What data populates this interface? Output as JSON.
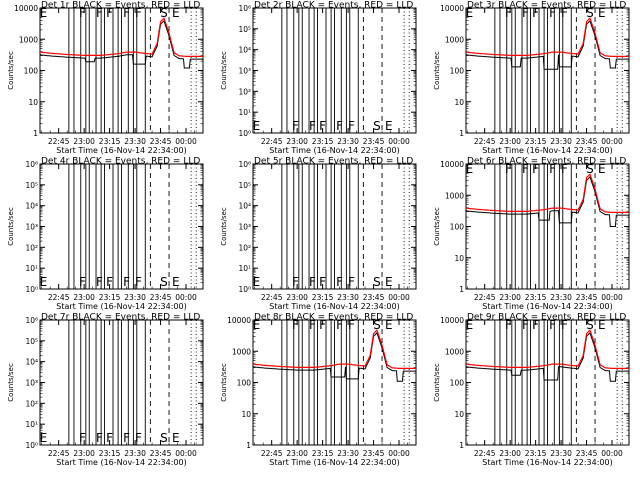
{
  "chart_data": {
    "type": "line",
    "x_ticks": [
      "22:45",
      "23:00",
      "23:15",
      "23:30",
      "23:45",
      "00:00"
    ],
    "xlabel": "Start Time (16-Nov-14 22:34:00)",
    "ylabel": "Counts/sec",
    "y_scale": "log",
    "event_letters": [
      "E",
      "F",
      "F",
      "F",
      "F",
      "F",
      "S",
      "E"
    ],
    "event_lines_solid": [
      "22:51",
      "22:54",
      "22:58",
      "23:01",
      "23:03",
      "23:07",
      "23:10",
      "23:12",
      "23:17",
      "23:20",
      "23:22",
      "23:26",
      "23:29",
      "23:31",
      "23:36"
    ],
    "event_lines_dashed": [
      "23:39",
      "23:50"
    ],
    "event_lines_dotted": [
      "00:03",
      "00:06"
    ],
    "letter_times": [
      "22:36",
      "22:59",
      "23:09",
      "23:15",
      "23:25",
      "23:32",
      "23:47",
      "23:54"
    ],
    "series": [
      {
        "name": "BLACK = Events",
        "color": "#000000"
      },
      {
        "name": "RED = LLD",
        "color": "#ff0000"
      }
    ],
    "curve_times": [
      "22:34",
      "22:40",
      "22:50",
      "23:00",
      "23:10",
      "23:20",
      "23:25",
      "23:30",
      "23:35",
      "23:40",
      "23:43",
      "23:45",
      "23:47",
      "23:50",
      "23:53",
      "23:56",
      "24:00",
      "24:05",
      "24:10"
    ],
    "curve_values": [
      370,
      340,
      310,
      290,
      290,
      330,
      370,
      370,
      340,
      320,
      700,
      3500,
      4500,
      1500,
      350,
      280,
      270,
      270,
      270
    ],
    "panels": [
      {
        "id": "1r",
        "title": "Det 1r BLACK = Events, RED = LLD",
        "ytick_labels": [
          "1",
          "10",
          "100",
          "1000",
          "10000"
        ],
        "ylim": [
          1,
          10000
        ],
        "has_data": true,
        "overlay_letters": false,
        "dips": [
          [
            "23:01",
            "23:06",
            190
          ],
          [
            "23:29",
            "23:36",
            160
          ],
          [
            "23:59",
            "24:02",
            120
          ]
        ]
      },
      {
        "id": "2r",
        "title": "Det 2r BLACK = Events, RED = LLD",
        "ytick_labels": [
          "10⁰",
          "10¹",
          "10²",
          "10³",
          "10⁴",
          "10⁵",
          "10⁶"
        ],
        "ylim": [
          1,
          1000000
        ],
        "has_data": false,
        "overlay_letters": true,
        "dips": []
      },
      {
        "id": "3r",
        "title": "Det 3r BLACK = Events, RED = LLD",
        "ytick_labels": [
          "1",
          "10",
          "100",
          "1000",
          "10000"
        ],
        "ylim": [
          1,
          10000
        ],
        "has_data": true,
        "overlay_letters": false,
        "dips": [
          [
            "23:01",
            "23:06",
            130
          ],
          [
            "23:20",
            "23:28",
            110
          ],
          [
            "23:29",
            "23:36",
            130
          ],
          [
            "23:59",
            "24:02",
            120
          ]
        ]
      },
      {
        "id": "4r",
        "title": "Det 4r BLACK = Events, RED = LLD",
        "ytick_labels": [
          "10⁰",
          "10¹",
          "10²",
          "10³",
          "10⁴",
          "10⁵",
          "10⁶"
        ],
        "ylim": [
          1,
          1000000
        ],
        "has_data": false,
        "overlay_letters": true,
        "dips": []
      },
      {
        "id": "5r",
        "title": "Det 5r BLACK = Events, RED = LLD",
        "ytick_labels": [
          "10⁰",
          "10¹",
          "10²",
          "10³",
          "10⁴",
          "10⁵",
          "10⁶"
        ],
        "ylim": [
          1,
          1000000
        ],
        "has_data": false,
        "overlay_letters": true,
        "dips": []
      },
      {
        "id": "6r",
        "title": "Det 6r BLACK = Events, RED = LLD",
        "ytick_labels": [
          "1",
          "10",
          "100",
          "1000",
          "10000"
        ],
        "ylim": [
          1,
          10000
        ],
        "has_data": true,
        "overlay_letters": false,
        "dips": [
          [
            "23:17",
            "23:23",
            160
          ],
          [
            "23:29",
            "23:36",
            130
          ],
          [
            "23:59",
            "24:02",
            100
          ]
        ]
      },
      {
        "id": "7r",
        "title": "Det 7r BLACK = Events, RED = LLD",
        "ytick_labels": [
          "10⁰",
          "10¹",
          "10²",
          "10³",
          "10⁴",
          "10⁵",
          "10⁶"
        ],
        "ylim": [
          1,
          1000000
        ],
        "has_data": false,
        "overlay_letters": true,
        "dips": []
      },
      {
        "id": "8r",
        "title": "Det 8r BLACK = Events, RED = LLD",
        "ytick_labels": [
          "1",
          "10",
          "100",
          "1000",
          "10000"
        ],
        "ylim": [
          1,
          10000
        ],
        "has_data": true,
        "overlay_letters": false,
        "dips": [
          [
            "23:20",
            "23:28",
            150
          ],
          [
            "23:29",
            "23:36",
            130
          ],
          [
            "23:59",
            "24:02",
            110
          ]
        ]
      },
      {
        "id": "9r",
        "title": "Det 9r BLACK = Events, RED = LLD",
        "ytick_labels": [
          "1",
          "10",
          "100",
          "1000",
          "10000"
        ],
        "ylim": [
          1,
          10000
        ],
        "has_data": true,
        "overlay_letters": false,
        "dips": [
          [
            "23:01",
            "23:06",
            170
          ],
          [
            "23:20",
            "23:28",
            120
          ],
          [
            "23:59",
            "24:02",
            110
          ]
        ]
      }
    ]
  }
}
